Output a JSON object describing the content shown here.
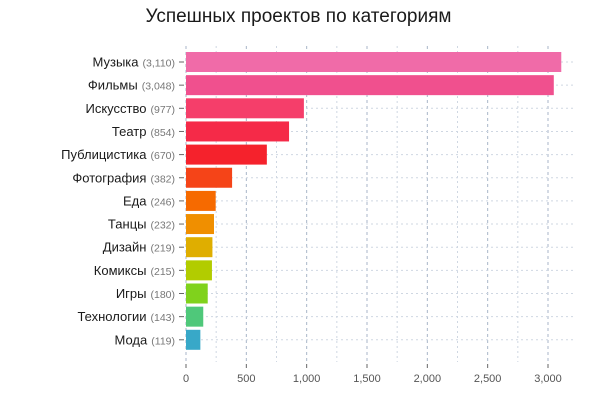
{
  "chart_data": {
    "type": "bar",
    "orientation": "horizontal",
    "title": "Успешных проектов по категориям",
    "xlabel": "",
    "ylabel": "",
    "xlim": [
      0,
      3200
    ],
    "grid": true,
    "x_ticks": [
      0,
      500,
      1000,
      1500,
      2000,
      2500,
      3000
    ],
    "x_tick_labels": [
      "0",
      "500",
      "1,000",
      "1,500",
      "2,000",
      "2,500",
      "3,000"
    ],
    "categories": [
      "Музыка",
      "Фильмы",
      "Искусство",
      "Театр",
      "Публицистика",
      "Фотография",
      "Еда",
      "Танцы",
      "Дизайн",
      "Комиксы",
      "Игры",
      "Технологии",
      "Мода"
    ],
    "count_labels": [
      "(3,110)",
      "(3,048)",
      "(977)",
      "(854)",
      "(670)",
      "(382)",
      "(246)",
      "(232)",
      "(219)",
      "(215)",
      "(180)",
      "(143)",
      "(119)"
    ],
    "values": [
      3110,
      3048,
      977,
      854,
      670,
      382,
      246,
      232,
      219,
      215,
      180,
      143,
      119
    ],
    "colors": [
      "#f06ba8",
      "#f0508e",
      "#f53e6a",
      "#f52a48",
      "#f5222c",
      "#f54418",
      "#f66a00",
      "#f08f00",
      "#dfae00",
      "#b2cc00",
      "#80d21c",
      "#4fc87a",
      "#38a8c8"
    ]
  }
}
